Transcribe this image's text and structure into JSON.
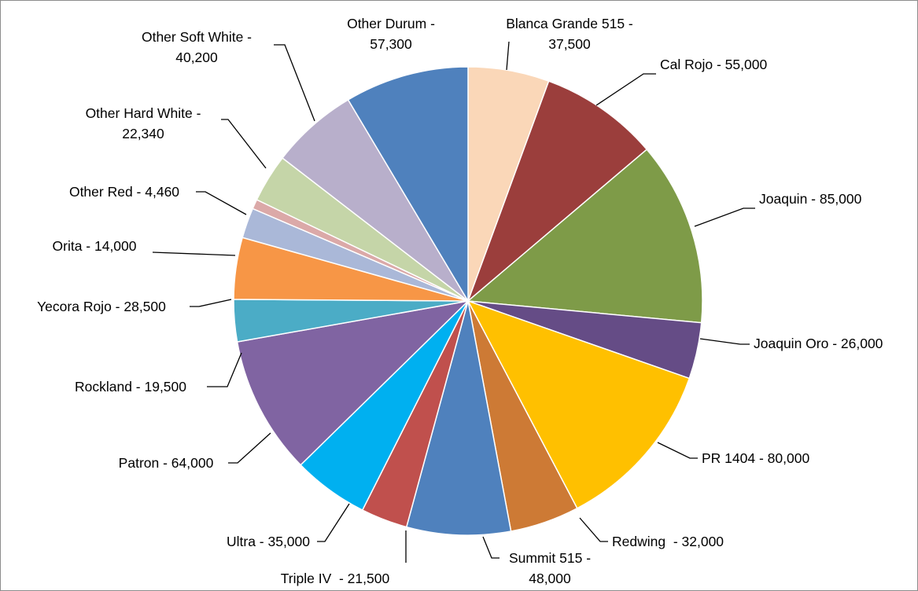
{
  "chart_data": {
    "type": "pie",
    "title": "",
    "start_angle_deg": 0,
    "direction": "clockwise",
    "label_format": "{name} - {value}",
    "slices": [
      {
        "name": "Blanca Grande 515",
        "value": 37500,
        "display": "37,500",
        "label_lines": [
          "Blanca Grande 515 -",
          "37,500"
        ],
        "color": "#FAD7B8"
      },
      {
        "name": "Cal Rojo",
        "value": 55000,
        "display": "55,000",
        "label_lines": [
          "Cal Rojo - 55,000"
        ],
        "color": "#9B3E3C"
      },
      {
        "name": "Joaquin",
        "value": 85000,
        "display": "85,000",
        "label_lines": [
          "Joaquin - 85,000"
        ],
        "color": "#7E9B48"
      },
      {
        "name": "Joaquin Oro",
        "value": 26000,
        "display": "26,000",
        "label_lines": [
          "Joaquin Oro - 26,000"
        ],
        "color": "#654C86"
      },
      {
        "name": "PR 1404",
        "value": 80000,
        "display": "80,000",
        "label_lines": [
          "PR 1404 - 80,000"
        ],
        "color": "#FFC000"
      },
      {
        "name": "Redwing",
        "value": 32000,
        "display": "32,000",
        "label_lines": [
          "Redwing  - 32,000"
        ],
        "color": "#CD7A35"
      },
      {
        "name": "Summit 515",
        "value": 48000,
        "display": "48,000",
        "label_lines": [
          "Summit 515 -",
          "48,000"
        ],
        "color": "#4F81BD"
      },
      {
        "name": "Triple IV",
        "value": 21500,
        "display": "21,500",
        "label_lines": [
          "Triple IV  - 21,500"
        ],
        "color": "#C0504D"
      },
      {
        "name": "Ultra",
        "value": 35000,
        "display": "35,000",
        "label_lines": [
          "Ultra - 35,000"
        ],
        "color": "#00B0F0"
      },
      {
        "name": "Patron",
        "value": 64000,
        "display": "64,000",
        "label_lines": [
          "Patron - 64,000"
        ],
        "color": "#8064A2"
      },
      {
        "name": "Rockland",
        "value": 19500,
        "display": "19,500",
        "label_lines": [
          "Rockland - 19,500"
        ],
        "color": "#4BACC6"
      },
      {
        "name": "Yecora Rojo",
        "value": 28500,
        "display": "28,500",
        "label_lines": [
          "Yecora Rojo - 28,500"
        ],
        "color": "#F79646"
      },
      {
        "name": "Orita",
        "value": 14000,
        "display": "14,000",
        "label_lines": [
          "Orita - 14,000"
        ],
        "color": "#AAB8D8"
      },
      {
        "name": "Other Red",
        "value": 4460,
        "display": "4,460",
        "label_lines": [
          "Other Red - 4,460"
        ],
        "color": "#DBA9A8"
      },
      {
        "name": "Other Hard White",
        "value": 22340,
        "display": "22,340",
        "label_lines": [
          "Other Hard White -",
          "22,340"
        ],
        "color": "#C5D5A8"
      },
      {
        "name": "Other Soft White",
        "value": 40200,
        "display": "40,200",
        "label_lines": [
          "Other Soft White -",
          "40,200"
        ],
        "color": "#B8AFCB"
      },
      {
        "name": "Other Durum",
        "value": 57300,
        "display": "57,300",
        "label_lines": [
          "Other Durum -",
          "57,300"
        ],
        "color": "#4F81BD"
      }
    ]
  }
}
